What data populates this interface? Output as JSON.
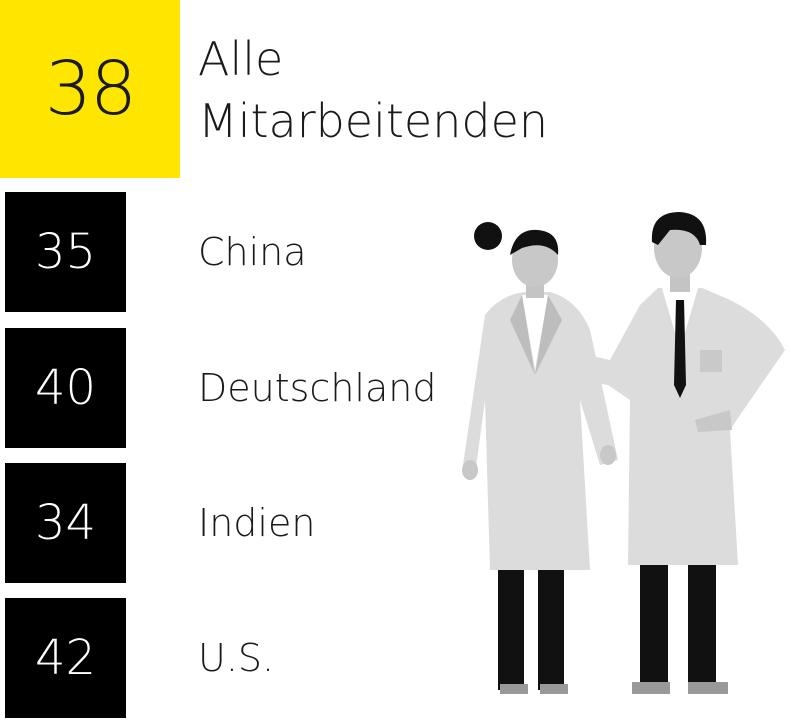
{
  "headline": {
    "value": 38,
    "label": "Alle Mitarbeitenden"
  },
  "items": [
    {
      "value": 35,
      "label": "China"
    },
    {
      "value": 40,
      "label": "Deutschland"
    },
    {
      "value": 34,
      "label": "Indien"
    },
    {
      "value": 42,
      "label": "U.S."
    }
  ]
}
